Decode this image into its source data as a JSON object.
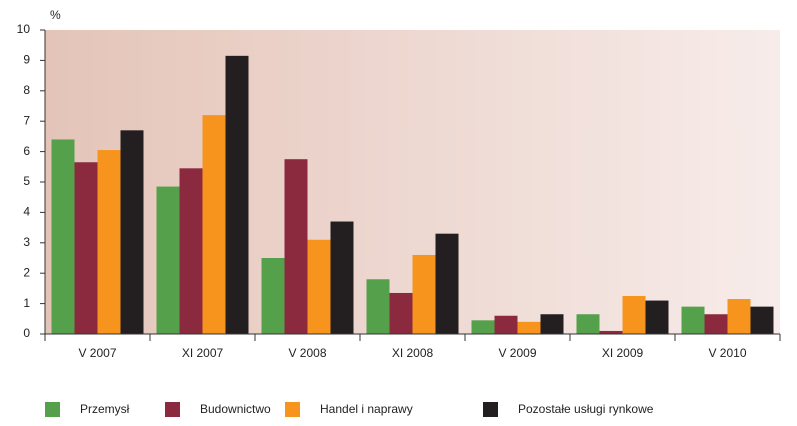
{
  "chart_data": {
    "type": "bar",
    "y_unit": "%",
    "categories": [
      "V 2007",
      "XI 2007",
      "V 2008",
      "XI 2008",
      "V 2009",
      "XI 2009",
      "V 2010"
    ],
    "series": [
      {
        "name": "Przemysł",
        "color": "#55a04a",
        "values": [
          6.4,
          4.85,
          2.5,
          1.8,
          0.45,
          0.65,
          0.9
        ]
      },
      {
        "name": "Budownictwo",
        "color": "#8b2a3f",
        "values": [
          5.65,
          5.45,
          5.75,
          1.35,
          0.6,
          0.1,
          0.65
        ]
      },
      {
        "name": "Handel i naprawy",
        "color": "#f7941d",
        "values": [
          6.05,
          7.2,
          3.1,
          2.6,
          0.4,
          1.25,
          1.15
        ]
      },
      {
        "name": "Pozostałe usługi rynkowe",
        "color": "#231f20",
        "values": [
          6.7,
          9.15,
          3.7,
          3.3,
          0.65,
          1.1,
          0.9
        ]
      }
    ],
    "ylim": [
      0,
      10
    ],
    "yticks": [
      0,
      1,
      2,
      3,
      4,
      5,
      6,
      7,
      8,
      9,
      10
    ],
    "legend": "bottom"
  }
}
